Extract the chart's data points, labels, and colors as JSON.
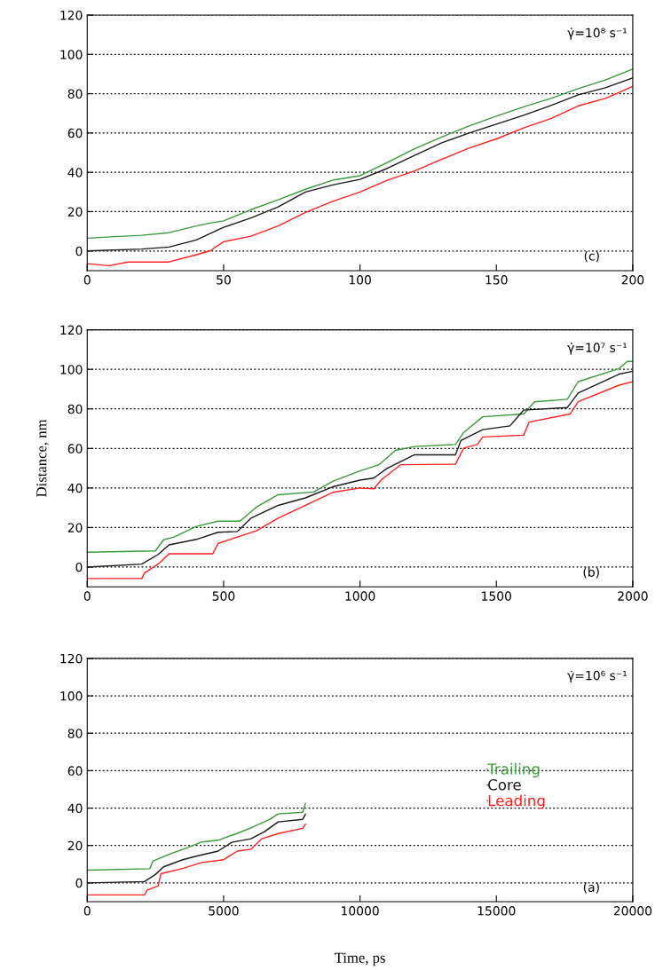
{
  "chart_data": [
    {
      "type": "line",
      "annotations": [
        "γ̇=10⁸ s⁻¹",
        "(c)"
      ],
      "xlim": [
        0,
        200
      ],
      "xticks": [
        0,
        50,
        100,
        150,
        200
      ],
      "ylim": [
        -10,
        120
      ],
      "yticks": [
        0,
        20,
        40,
        60,
        80,
        100,
        120
      ],
      "grid": "y",
      "legend": false,
      "marker": "none",
      "line_style": "solid",
      "series": [
        {
          "color": "#3a9a3a",
          "x": [
            0,
            10,
            20,
            30,
            40,
            45,
            50,
            60,
            70,
            80,
            90,
            100,
            110,
            120,
            130,
            140,
            150,
            160,
            170,
            180,
            190,
            200
          ],
          "values": [
            6.5,
            7.3,
            8,
            9.3,
            12.7,
            14.2,
            15.3,
            21,
            26,
            31.4,
            36,
            38.3,
            45,
            52,
            58,
            63.6,
            68.6,
            73.3,
            77.6,
            82.6,
            87,
            92.5
          ]
        },
        {
          "color": "#1a1a1a",
          "x": [
            0,
            20,
            30,
            40,
            50,
            60,
            70,
            80,
            90,
            100,
            110,
            120,
            130,
            140,
            150,
            160,
            170,
            180,
            190,
            200
          ],
          "values": [
            0,
            1,
            2,
            5.6,
            12,
            16.8,
            22.4,
            30,
            33.6,
            36.4,
            42,
            48.6,
            55,
            60,
            64.5,
            69,
            74,
            79.4,
            83,
            88
          ]
        },
        {
          "color": "#ff2020",
          "x": [
            0,
            8,
            15,
            30,
            40,
            45,
            50,
            60,
            70,
            80,
            90,
            100,
            110,
            120,
            130,
            140,
            150,
            160,
            170,
            180,
            190,
            200
          ],
          "values": [
            -6.5,
            -7.5,
            -5.6,
            -5.6,
            -1.9,
            0,
            4.7,
            7.5,
            12.7,
            19.6,
            25.2,
            30,
            36,
            40.7,
            46.7,
            52.3,
            57,
            62.6,
            67.3,
            73.8,
            77.6,
            83.7
          ]
        }
      ]
    },
    {
      "type": "line",
      "ylabel": "Distance, nm",
      "annotations": [
        "γ̇=10⁷ s⁻¹",
        "(b)"
      ],
      "xlim": [
        0,
        2000
      ],
      "xticks": [
        0,
        500,
        1000,
        1500,
        2000
      ],
      "ylim": [
        -10,
        120
      ],
      "yticks": [
        0,
        20,
        40,
        60,
        80,
        100,
        120
      ],
      "grid": "y",
      "legend": false,
      "marker": "none",
      "line_style": "solid",
      "series": [
        {
          "color": "#3a9a3a",
          "x": [
            0,
            250,
            280,
            320,
            400,
            480,
            560,
            620,
            700,
            830,
            900,
            1000,
            1070,
            1130,
            1200,
            1350,
            1380,
            1450,
            1600,
            1640,
            1760,
            1800,
            1950,
            1980,
            2000
          ],
          "values": [
            7.5,
            8.2,
            13.8,
            15.3,
            20.6,
            23.2,
            23.2,
            30.3,
            36.6,
            38,
            43.4,
            48.6,
            51.8,
            59,
            61,
            62,
            68,
            76,
            77.4,
            83.6,
            84.9,
            93.8,
            100.4,
            104,
            104
          ]
        },
        {
          "color": "#1a1a1a",
          "x": [
            0,
            200,
            260,
            300,
            400,
            480,
            550,
            600,
            700,
            800,
            900,
            1000,
            1050,
            1100,
            1200,
            1350,
            1370,
            1450,
            1550,
            1600,
            1760,
            1800,
            1950,
            2000
          ],
          "values": [
            0,
            1.5,
            6.4,
            11.2,
            14,
            17.6,
            18,
            24.7,
            31.2,
            35,
            40.6,
            44,
            45,
            50,
            56.8,
            56.8,
            64,
            69.5,
            71.4,
            79.4,
            80.7,
            88,
            97.6,
            99
          ]
        },
        {
          "color": "#ff2020",
          "x": [
            0,
            200,
            210,
            260,
            300,
            460,
            480,
            620,
            700,
            800,
            900,
            1000,
            1050,
            1080,
            1150,
            1350,
            1380,
            1430,
            1450,
            1600,
            1620,
            1770,
            1800,
            1950,
            2000
          ],
          "values": [
            -5.8,
            -5.8,
            -3,
            1.5,
            6.7,
            6.7,
            12,
            18.3,
            24.7,
            31.2,
            37.8,
            40,
            39.6,
            44.3,
            51.8,
            52,
            60.2,
            62,
            65.8,
            66.7,
            73.3,
            77.4,
            83.6,
            92,
            93.8
          ]
        }
      ]
    },
    {
      "type": "line",
      "xlabel": "Time, ps",
      "annotations": [
        "γ̇=10⁶ s⁻¹",
        "(a)"
      ],
      "xlim": [
        0,
        20000
      ],
      "xticks": [
        0,
        5000,
        10000,
        15000,
        20000
      ],
      "ylim": [
        -10,
        120
      ],
      "yticks": [
        0,
        20,
        40,
        60,
        80,
        100,
        120
      ],
      "grid": "y",
      "legend": "right",
      "marker": "none",
      "line_style": "solid",
      "series": [
        {
          "name": "Trailing",
          "color": "#3a9a3a",
          "x": [
            0,
            2300,
            2400,
            3000,
            3700,
            4200,
            4800,
            5500,
            6000,
            6700,
            7000,
            7900,
            8000
          ],
          "values": [
            6.8,
            7.6,
            11.6,
            15.3,
            19,
            21.9,
            22.8,
            26.5,
            29.4,
            34,
            36.9,
            37.8,
            42.5
          ]
        },
        {
          "name": "Core",
          "color": "#1a1a1a",
          "x": [
            0,
            2100,
            2500,
            2800,
            3500,
            4000,
            4800,
            5300,
            6000,
            6500,
            7000,
            7900,
            8000
          ],
          "values": [
            0,
            0.7,
            4.5,
            8.6,
            12.4,
            14.3,
            17,
            21.7,
            23.6,
            27.4,
            32.6,
            34,
            36.7
          ]
        },
        {
          "name": "Leading",
          "color": "#ff2020",
          "x": [
            0,
            2100,
            2200,
            2600,
            2700,
            3500,
            4200,
            5000,
            5500,
            6000,
            6400,
            7000,
            7900,
            8000
          ],
          "values": [
            -6.4,
            -6.4,
            -3.8,
            -1.7,
            4.9,
            7.7,
            10.9,
            12.4,
            17,
            18,
            23.6,
            26.4,
            29.2,
            31.4
          ]
        }
      ]
    }
  ]
}
